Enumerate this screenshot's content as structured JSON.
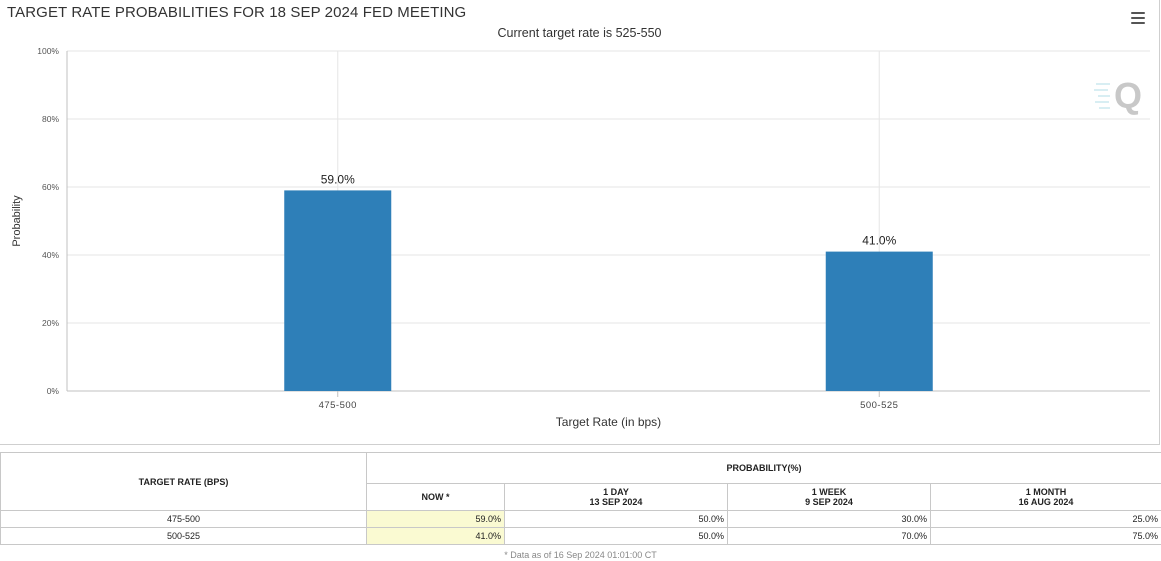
{
  "chart_data": {
    "type": "bar",
    "title": "TARGET RATE PROBABILITIES FOR 18 SEP 2024 FED MEETING",
    "subtitle": "Current target rate is 525-550",
    "categories": [
      "475-500",
      "500-525"
    ],
    "values": [
      59.0,
      41.0
    ],
    "data_labels": [
      "59.0%",
      "41.0%"
    ],
    "xlabel": "Target Rate (in bps)",
    "ylabel": "Probability",
    "ylim": [
      0,
      100
    ],
    "yticks": [
      0,
      20,
      40,
      60,
      80,
      100
    ],
    "ytick_labels": [
      "0%",
      "20%",
      "40%",
      "60%",
      "80%",
      "100%"
    ],
    "grid": true,
    "bar_color": "#2e7fb8"
  },
  "ui": {
    "menu_icon": "hamburger-menu-icon",
    "watermark_icon": "cme-q-logo"
  },
  "table": {
    "col_rate_header": "TARGET RATE (BPS)",
    "col_prob_header": "PROBABILITY(%)",
    "sub_headers": [
      {
        "line1": "NOW",
        "line2": "",
        "star": " *"
      },
      {
        "line1": "1 DAY",
        "line2": "13 SEP 2024",
        "star": ""
      },
      {
        "line1": "1 WEEK",
        "line2": "9 SEP 2024",
        "star": ""
      },
      {
        "line1": "1 MONTH",
        "line2": "16 AUG 2024",
        "star": ""
      }
    ],
    "rows": [
      {
        "rate": "475-500",
        "values": [
          "59.0%",
          "50.0%",
          "30.0%",
          "25.0%"
        ]
      },
      {
        "rate": "500-525",
        "values": [
          "41.0%",
          "50.0%",
          "70.0%",
          "75.0%"
        ]
      }
    ],
    "now_highlight": "#fafad2"
  },
  "footnote": "* Data as of 16 Sep 2024 01:01:00 CT"
}
